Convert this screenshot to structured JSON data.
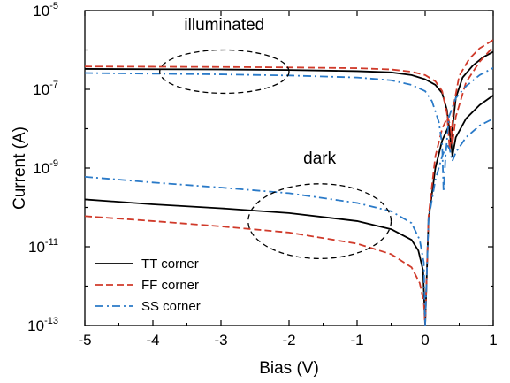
{
  "chart_data": {
    "type": "line",
    "xlabel": "Bias (V)",
    "ylabel": "Current (A)",
    "xlim": [
      -5,
      1
    ],
    "ylim_log10": [
      -13,
      -5
    ],
    "y_scale": "log",
    "grid": false,
    "legend_position": "bottom-left",
    "x_ticks": [
      -5,
      -4,
      -3,
      -2,
      -1,
      0,
      1
    ],
    "x_tick_labels": [
      "-5",
      "-4",
      "-3",
      "-2",
      "-1",
      "0",
      "1"
    ],
    "y_tick_exponents": [
      -13,
      -11,
      -9,
      -7,
      -5
    ],
    "y_tick_base": "10",
    "y_tick_exponent_labels": [
      "-13",
      "-11",
      "-9",
      "-7",
      "-5"
    ],
    "annotations": [
      {
        "text": "illuminated",
        "x": -2.95,
        "y": 3.2e-06
      },
      {
        "text": "dark",
        "x": -1.55,
        "y": 1.3e-09
      }
    ],
    "highlight_ellipses": [
      {
        "cx": -2.95,
        "cy_log10": -6.55,
        "rx": 0.95,
        "ry_log10": 0.55
      },
      {
        "cx": -1.55,
        "cy_log10": -10.35,
        "rx": 1.05,
        "ry_log10": 0.95
      }
    ],
    "series": [
      {
        "name": "TT corner",
        "color": "#000000",
        "dash": "solid",
        "branches": [
          [
            [
              -5,
              3.3e-07
            ],
            [
              -4,
              3.25e-07
            ],
            [
              -3,
              3.2e-07
            ],
            [
              -2,
              3.1e-07
            ],
            [
              -1,
              2.9e-07
            ],
            [
              -0.5,
              2.7e-07
            ],
            [
              -0.2,
              2.3e-07
            ],
            [
              0,
              1.8e-07
            ],
            [
              0.15,
              1.3e-07
            ],
            [
              0.25,
              8e-08
            ],
            [
              0.32,
              3e-08
            ],
            [
              0.36,
              8e-09
            ],
            [
              0.38,
              4e-09
            ],
            [
              0.4,
              1e-08
            ],
            [
              0.45,
              6e-08
            ],
            [
              0.55,
              2e-07
            ],
            [
              0.7,
              4e-07
            ],
            [
              0.85,
              6.5e-07
            ],
            [
              1.0,
              9e-07
            ]
          ],
          [
            [
              -5,
              1.6e-10
            ],
            [
              -4,
              1.2e-10
            ],
            [
              -3,
              9.5e-11
            ],
            [
              -2,
              7.2e-11
            ],
            [
              -1,
              4.5e-11
            ],
            [
              -0.5,
              2.8e-11
            ],
            [
              -0.2,
              1.5e-11
            ],
            [
              -0.1,
              8e-12
            ],
            [
              -0.03,
              2.5e-12
            ],
            [
              0,
              1e-13
            ],
            [
              0.05,
              5e-11
            ],
            [
              0.15,
              1e-09
            ],
            [
              0.25,
              5e-09
            ],
            [
              0.35,
              1.2e-08
            ],
            [
              0.38,
              5e-09
            ],
            [
              0.4,
              2e-09
            ],
            [
              0.45,
              6e-09
            ],
            [
              0.6,
              1.8e-08
            ],
            [
              0.8,
              4e-08
            ],
            [
              1.0,
              7e-08
            ]
          ]
        ]
      },
      {
        "name": "FF corner",
        "color": "#d03a2a",
        "dash": "dashed",
        "branches": [
          [
            [
              -5,
              3.8e-07
            ],
            [
              -4,
              3.75e-07
            ],
            [
              -3,
              3.7e-07
            ],
            [
              -2,
              3.6e-07
            ],
            [
              -1,
              3.45e-07
            ],
            [
              -0.5,
              3.2e-07
            ],
            [
              -0.2,
              2.8e-07
            ],
            [
              0,
              2.3e-07
            ],
            [
              0.15,
              1.6e-07
            ],
            [
              0.25,
              9e-08
            ],
            [
              0.32,
              2.5e-08
            ],
            [
              0.36,
              3e-09
            ],
            [
              0.39,
              8e-09
            ],
            [
              0.42,
              4e-08
            ],
            [
              0.5,
              2.2e-07
            ],
            [
              0.65,
              6e-07
            ],
            [
              0.8,
              1.1e-06
            ],
            [
              1.0,
              1.8e-06
            ]
          ],
          [
            [
              -5,
              6e-11
            ],
            [
              -4,
              4.5e-11
            ],
            [
              -3,
              3.3e-11
            ],
            [
              -2,
              2.3e-11
            ],
            [
              -1,
              1.2e-11
            ],
            [
              -0.5,
              6.5e-12
            ],
            [
              -0.2,
              3e-12
            ],
            [
              -0.08,
              1.2e-12
            ],
            [
              -0.02,
              4e-13
            ],
            [
              0,
              1e-13
            ],
            [
              0.05,
              6e-11
            ],
            [
              0.15,
              2e-09
            ],
            [
              0.25,
              1e-08
            ],
            [
              0.33,
              2e-08
            ],
            [
              0.37,
              1.2e-08
            ],
            [
              0.4,
              4e-09
            ],
            [
              0.45,
              2e-08
            ],
            [
              0.6,
              1.5e-07
            ],
            [
              0.8,
              5e-07
            ],
            [
              1.0,
              1.2e-06
            ]
          ]
        ]
      },
      {
        "name": "SS corner",
        "color": "#2a7ac8",
        "dash": "dash-dot",
        "branches": [
          [
            [
              -5,
              2.6e-07
            ],
            [
              -4,
              2.5e-07
            ],
            [
              -3,
              2.4e-07
            ],
            [
              -2,
              2.25e-07
            ],
            [
              -1,
              2e-07
            ],
            [
              -0.5,
              1.7e-07
            ],
            [
              -0.2,
              1.3e-07
            ],
            [
              0,
              9e-08
            ],
            [
              0.1,
              5e-08
            ],
            [
              0.2,
              1.5e-08
            ],
            [
              0.25,
              4e-09
            ],
            [
              0.27,
              2.5e-10
            ],
            [
              0.3,
              2e-09
            ],
            [
              0.35,
              2e-08
            ],
            [
              0.45,
              6e-08
            ],
            [
              0.6,
              1.2e-07
            ],
            [
              0.8,
              2.3e-07
            ],
            [
              1.0,
              3.5e-07
            ]
          ],
          [
            [
              -5,
              6e-10
            ],
            [
              -4,
              4.3e-10
            ],
            [
              -3,
              3.2e-10
            ],
            [
              -2,
              2.3e-10
            ],
            [
              -1,
              1.3e-10
            ],
            [
              -0.5,
              8e-11
            ],
            [
              -0.2,
              4e-11
            ],
            [
              -0.08,
              1.5e-11
            ],
            [
              -0.02,
              4e-12
            ],
            [
              0,
              1e-13
            ],
            [
              0.05,
              5e-11
            ],
            [
              0.15,
              5e-10
            ],
            [
              0.25,
              2e-09
            ],
            [
              0.32,
              4e-09
            ],
            [
              0.36,
              3e-09
            ],
            [
              0.4,
              1.5e-09
            ],
            [
              0.45,
              2.5e-09
            ],
            [
              0.6,
              6e-09
            ],
            [
              0.8,
              1.2e-08
            ],
            [
              1.0,
              1.8e-08
            ]
          ]
        ]
      }
    ]
  }
}
